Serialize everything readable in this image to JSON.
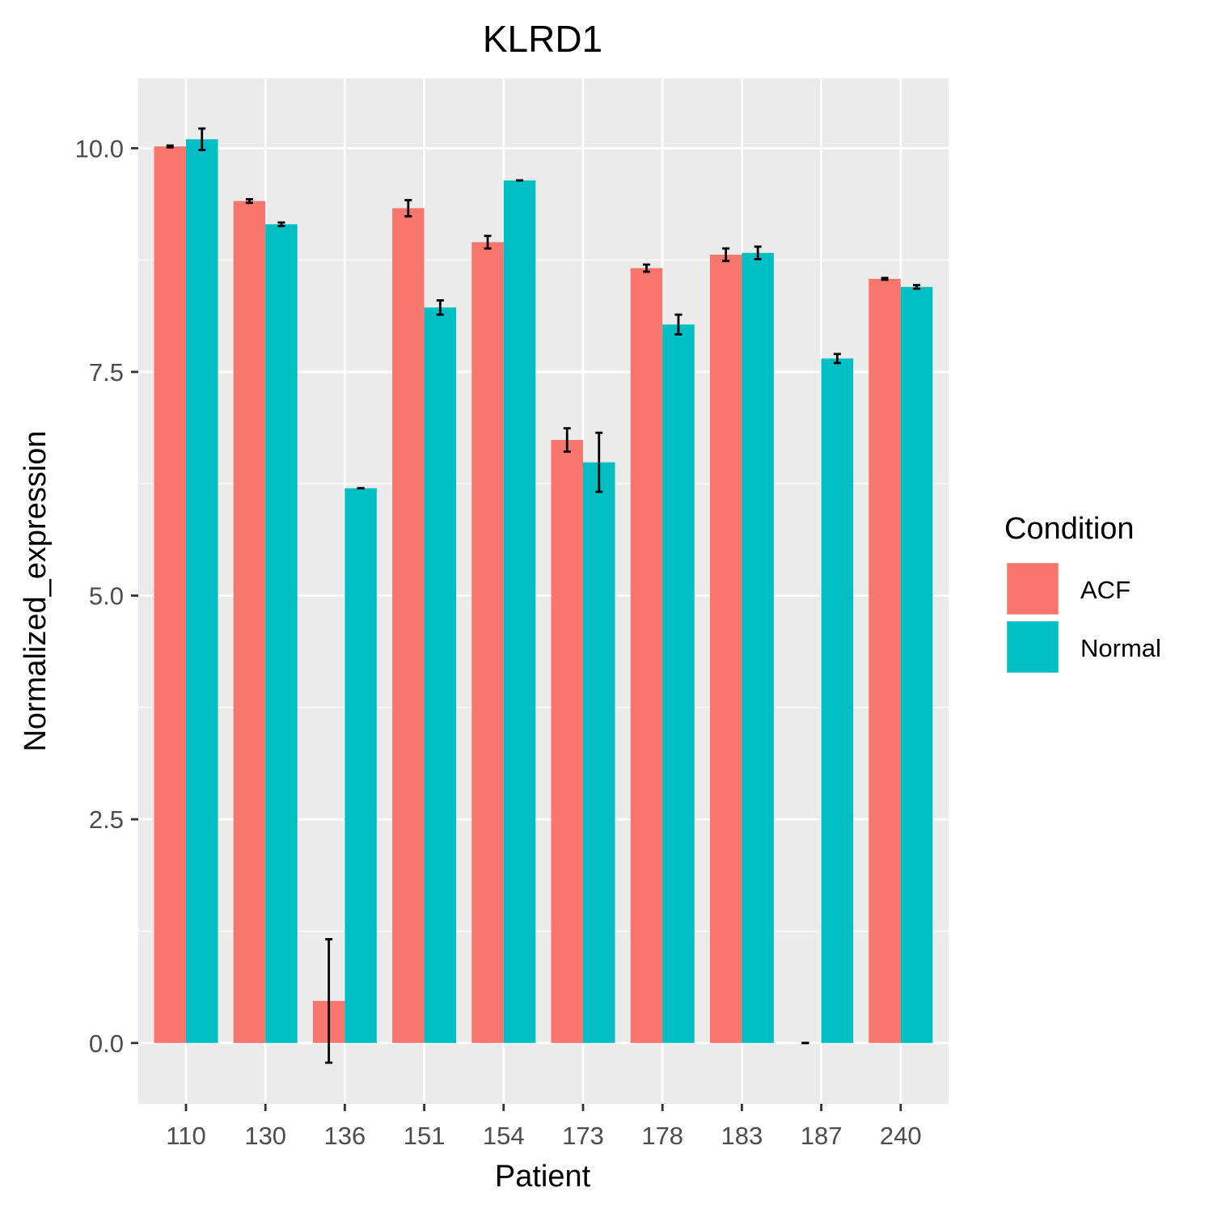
{
  "chart_data": {
    "type": "bar",
    "title": "KLRD1",
    "xlabel": "Patient",
    "ylabel": "Normalized_expression",
    "categories": [
      "110",
      "130",
      "136",
      "151",
      "154",
      "173",
      "178",
      "183",
      "187",
      "240"
    ],
    "ylim": [
      -0.68,
      10.78
    ],
    "yticks": [
      "0.0",
      "2.5",
      "5.0",
      "7.5",
      "10.0"
    ],
    "grid": true,
    "legend": {
      "title": "Condition",
      "position": "right"
    },
    "series": [
      {
        "name": "ACF",
        "color": "#F8766D",
        "values": [
          10.02,
          9.41,
          0.47,
          9.33,
          8.95,
          6.74,
          8.66,
          8.81,
          0.0,
          8.54
        ],
        "errors": [
          0.01,
          0.02,
          0.69,
          0.09,
          0.07,
          0.13,
          0.04,
          0.07,
          0.0,
          0.01
        ]
      },
      {
        "name": "Normal",
        "color": "#00BFC4",
        "values": [
          10.1,
          9.15,
          6.2,
          8.22,
          9.64,
          6.49,
          8.03,
          8.83,
          7.65,
          8.45
        ],
        "errors": [
          0.12,
          0.02,
          0.0,
          0.08,
          0.0,
          0.33,
          0.11,
          0.07,
          0.05,
          0.02
        ]
      }
    ]
  }
}
